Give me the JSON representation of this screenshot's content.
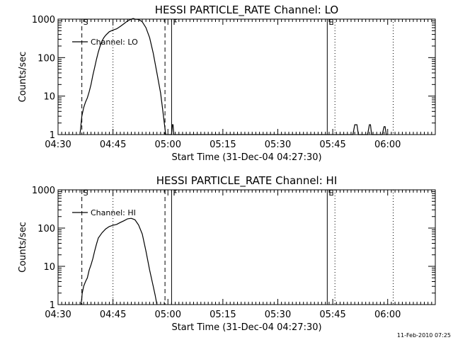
{
  "timestamp": "11-Feb-2010 07:25",
  "chart_data": [
    {
      "type": "line",
      "title": "HESSI PARTICLE_RATE Channel: LO",
      "xlabel": "Start Time (31-Dec-04 04:27:30)",
      "ylabel": "Counts/sec",
      "yscale": "log",
      "ylim": [
        1,
        1000
      ],
      "xlim_minutes": [
        270,
        373
      ],
      "grid": false,
      "legend_position": "top-left",
      "x_ticks": [
        {
          "label": "04:30",
          "value": 270
        },
        {
          "label": "04:45",
          "value": 285
        },
        {
          "label": "05:00",
          "value": 300
        },
        {
          "label": "05:15",
          "value": 315
        },
        {
          "label": "05:30",
          "value": 330
        },
        {
          "label": "05:45",
          "value": 345
        },
        {
          "label": "06:00",
          "value": 360
        }
      ],
      "y_ticks": [
        {
          "label": "1",
          "value": 1
        },
        {
          "label": "10",
          "value": 10
        },
        {
          "label": "100",
          "value": 100
        },
        {
          "label": "1000",
          "value": 1000
        }
      ],
      "markers": [
        {
          "label": "S",
          "x": 276.5,
          "style": "dashed"
        },
        {
          "label": "",
          "x": 285,
          "style": "dotted"
        },
        {
          "label": "",
          "x": 299.2,
          "style": "dashed"
        },
        {
          "label": "F",
          "x": 301,
          "style": "solid"
        },
        {
          "label": "E",
          "x": 343.5,
          "style": "solid"
        },
        {
          "label": "",
          "x": 345.6,
          "style": "dotted"
        },
        {
          "label": "",
          "x": 361.5,
          "style": "dotted"
        }
      ],
      "series": [
        {
          "name": "Channel: LO",
          "x": [
            276,
            276.5,
            277,
            277.5,
            278,
            278.5,
            279,
            279.5,
            280,
            280.5,
            281,
            281.5,
            282,
            282.5,
            283,
            284,
            285,
            286,
            287,
            288,
            289,
            290,
            290.5,
            291,
            292,
            293,
            294,
            295,
            296,
            297,
            298,
            298.5,
            299,
            299.4,
            301,
            301.2,
            301.4,
            301.6,
            302,
            350.5,
            351,
            351.3,
            351.6,
            352,
            354.5,
            355,
            355.3,
            355.6,
            356,
            358.5,
            359,
            359.3,
            359.6,
            360
          ],
          "y": [
            1,
            3,
            5,
            7,
            9,
            13,
            20,
            35,
            55,
            90,
            140,
            200,
            270,
            330,
            380,
            470,
            520,
            560,
            650,
            760,
            900,
            1000,
            1040,
            1000,
            980,
            850,
            600,
            330,
            130,
            40,
            12,
            5,
            2,
            1,
            1,
            1.8,
            1.8,
            1,
            1,
            1,
            1.8,
            1.8,
            1.8,
            1,
            1,
            1.8,
            1.8,
            1,
            1,
            1,
            1.6,
            1.6,
            1,
            1
          ]
        }
      ]
    },
    {
      "type": "line",
      "title": "HESSI PARTICLE_RATE Channel: HI",
      "xlabel": "Start Time (31-Dec-04 04:27:30)",
      "ylabel": "Counts/sec",
      "yscale": "log",
      "ylim": [
        1,
        1000
      ],
      "xlim_minutes": [
        270,
        373
      ],
      "grid": false,
      "legend_position": "top-left",
      "x_ticks": [
        {
          "label": "04:30",
          "value": 270
        },
        {
          "label": "04:45",
          "value": 285
        },
        {
          "label": "05:00",
          "value": 300
        },
        {
          "label": "05:15",
          "value": 315
        },
        {
          "label": "05:30",
          "value": 330
        },
        {
          "label": "05:45",
          "value": 345
        },
        {
          "label": "06:00",
          "value": 360
        }
      ],
      "y_ticks": [
        {
          "label": "1",
          "value": 1
        },
        {
          "label": "10",
          "value": 10
        },
        {
          "label": "100",
          "value": 100
        },
        {
          "label": "1000",
          "value": 1000
        }
      ],
      "markers": [
        {
          "label": "S",
          "x": 276.5,
          "style": "dashed"
        },
        {
          "label": "",
          "x": 285,
          "style": "dotted"
        },
        {
          "label": "",
          "x": 299.2,
          "style": "dashed"
        },
        {
          "label": "F",
          "x": 301,
          "style": "solid"
        },
        {
          "label": "E",
          "x": 343.5,
          "style": "solid"
        },
        {
          "label": "",
          "x": 345.6,
          "style": "dotted"
        },
        {
          "label": "",
          "x": 361.5,
          "style": "dotted"
        }
      ],
      "series": [
        {
          "name": "Channel: HI",
          "x": [
            276.3,
            276.6,
            277,
            277.5,
            278,
            278.5,
            279,
            279.5,
            280,
            280.5,
            281,
            282,
            283,
            284,
            285,
            286,
            287,
            288,
            289,
            290,
            291,
            292,
            293,
            294,
            295,
            296,
            296.5,
            297
          ],
          "y": [
            1,
            2,
            3,
            4,
            5,
            8,
            11,
            16,
            25,
            38,
            55,
            75,
            95,
            110,
            118,
            125,
            140,
            155,
            175,
            180,
            165,
            120,
            70,
            25,
            8,
            3,
            1.8,
            1
          ]
        }
      ]
    }
  ]
}
